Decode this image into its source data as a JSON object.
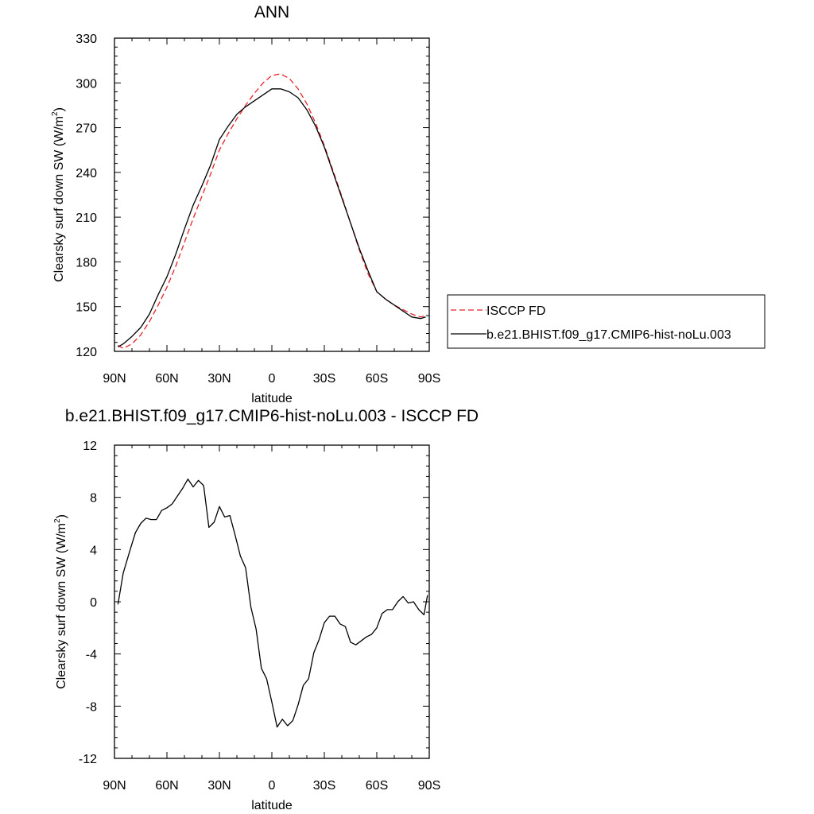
{
  "chart_data": [
    {
      "type": "line",
      "title": "ANN",
      "xlabel": "latitude",
      "ylabel": "Clearsky surf down SW (W/m",
      "ylabel_sup": "2",
      "ylabel_tail": ")",
      "xlim": [
        90,
        -90
      ],
      "ylim": [
        120,
        330
      ],
      "xticks": [
        90,
        60,
        30,
        0,
        -30,
        -60,
        -90
      ],
      "xtick_labels": [
        "90N",
        "60N",
        "30N",
        "0",
        "30S",
        "60S",
        "90S"
      ],
      "yticks": [
        120,
        150,
        180,
        210,
        240,
        270,
        300,
        330
      ],
      "ytick_labels": [
        "120",
        "150",
        "180",
        "210",
        "240",
        "270",
        "300",
        "330"
      ],
      "legend_position": "right-outside",
      "series": [
        {
          "name": "ISCCP FD",
          "color": "#e8222a",
          "dash": true,
          "x": [
            88,
            85,
            80,
            75,
            70,
            65,
            60,
            55,
            50,
            45,
            40,
            35,
            30,
            25,
            20,
            15,
            10,
            5,
            0,
            -5,
            -10,
            -15,
            -20,
            -25,
            -30,
            -35,
            -40,
            -45,
            -50,
            -55,
            -60,
            -65,
            -70,
            -75,
            -80,
            -85,
            -88
          ],
          "y": [
            124,
            122,
            125,
            131,
            140,
            151,
            163,
            177,
            193,
            209,
            224,
            239,
            255,
            266,
            276,
            285,
            293,
            300,
            305,
            306,
            303,
            296,
            286,
            273,
            258,
            241,
            224,
            206,
            188,
            172,
            160,
            155,
            151,
            148,
            145,
            143,
            144
          ]
        },
        {
          "name": "b.e21.BHIST.f09_g17.CMIP6-hist-noLu.003",
          "color": "#000000",
          "dash": false,
          "x": [
            88,
            85,
            80,
            75,
            70,
            65,
            60,
            55,
            50,
            45,
            40,
            35,
            30,
            25,
            20,
            15,
            10,
            5,
            0,
            -5,
            -10,
            -15,
            -20,
            -25,
            -30,
            -35,
            -40,
            -45,
            -50,
            -55,
            -60,
            -65,
            -70,
            -75,
            -80,
            -85,
            -88
          ],
          "y": [
            123,
            125,
            130,
            136,
            145,
            158,
            170,
            185,
            202,
            218,
            231,
            245,
            262,
            271,
            279,
            284,
            288,
            292,
            296,
            296,
            294,
            290,
            282,
            271,
            257,
            240,
            223,
            206,
            189,
            174,
            160,
            155,
            151,
            147,
            143,
            142,
            143
          ]
        }
      ]
    },
    {
      "type": "line",
      "title": "b.e21.BHIST.f09_g17.CMIP6-hist-noLu.003 - ISCCP FD",
      "xlabel": "latitude",
      "ylabel": "Clearsky surf down SW (W/m",
      "ylabel_sup": "2",
      "ylabel_tail": ")",
      "xlim": [
        90,
        -90
      ],
      "ylim": [
        -12,
        12
      ],
      "xticks": [
        90,
        60,
        30,
        0,
        -30,
        -60,
        -90
      ],
      "xtick_labels": [
        "90N",
        "60N",
        "30N",
        "0",
        "30S",
        "60S",
        "90S"
      ],
      "yticks": [
        -12,
        -8,
        -4,
        0,
        4,
        8,
        12
      ],
      "ytick_labels": [
        "-12",
        "-8",
        "-4",
        "0",
        "4",
        "8",
        "12"
      ],
      "series": [
        {
          "color": "#000000",
          "dash": false,
          "x": [
            88,
            85,
            81,
            78,
            75,
            72,
            69,
            66,
            63,
            60,
            57,
            54,
            51,
            48,
            45,
            42,
            39,
            36,
            33,
            30,
            27,
            24,
            21,
            18,
            15,
            12,
            9,
            6,
            3,
            0,
            -3,
            -6,
            -9,
            -12,
            -15,
            -18,
            -21,
            -24,
            -27,
            -30,
            -33,
            -36,
            -39,
            -42,
            -45,
            -48,
            -51,
            -54,
            -57,
            -60,
            -63,
            -66,
            -69,
            -72,
            -75,
            -78,
            -81,
            -84,
            -87,
            -89
          ],
          "y": [
            -0.2,
            2.2,
            4.0,
            5.3,
            6.0,
            6.4,
            6.3,
            6.3,
            7.0,
            7.2,
            7.5,
            8.1,
            8.7,
            9.4,
            8.8,
            9.3,
            8.9,
            5.7,
            6.1,
            7.3,
            6.5,
            6.6,
            5.1,
            3.5,
            2.6,
            -0.4,
            -2.1,
            -5.1,
            -5.9,
            -7.7,
            -9.6,
            -9.0,
            -9.5,
            -9.1,
            -7.9,
            -6.4,
            -5.9,
            -3.9,
            -2.9,
            -1.6,
            -1.1,
            -1.1,
            -1.7,
            -1.9,
            -3.1,
            -3.3,
            -3.0,
            -2.7,
            -2.5,
            -2.0,
            -0.9,
            -0.6,
            -0.6,
            0.0,
            0.4,
            -0.1,
            0.0,
            -0.6,
            -1.0,
            0.5
          ]
        }
      ]
    }
  ]
}
